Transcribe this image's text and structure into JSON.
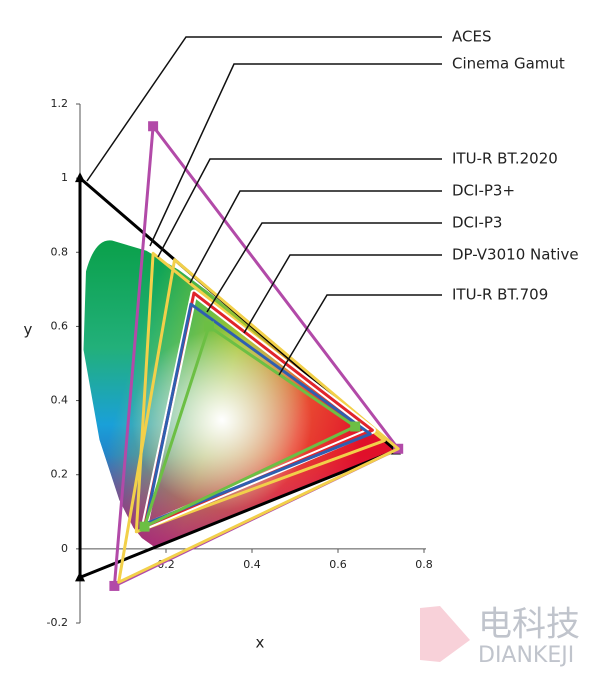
{
  "chart_data": {
    "type": "polygon",
    "xlabel": "x",
    "ylabel": "y",
    "xlim": [
      0,
      0.8
    ],
    "ylim": [
      -0.2,
      1.2
    ],
    "xticks": [
      0.2,
      0.4,
      0.6,
      0.8
    ],
    "yticks": [
      -0.2,
      0,
      0.2,
      0.4,
      0.6,
      0.8,
      1,
      1.2
    ],
    "series": [
      {
        "name": "ACES",
        "color": "#000000",
        "marker": "triangle",
        "x": [
          0.7347,
          0,
          0.0001
        ],
        "y": [
          0.2653,
          1,
          -0.077
        ]
      },
      {
        "name": "Cinema Gamut",
        "color": "#b24aa8",
        "marker": "square",
        "x": [
          0.74,
          0.17,
          0.08
        ],
        "y": [
          0.27,
          1.14,
          -0.1
        ]
      },
      {
        "name": "ITU-R BT.2020",
        "color": "#f2d04a",
        "x": [
          0.708,
          0.17,
          0.131
        ],
        "y": [
          0.292,
          0.797,
          0.046
        ]
      },
      {
        "name": "DCI-P3+",
        "color": "#f2d04a",
        "x": [
          0.74,
          0.22,
          0.09
        ],
        "y": [
          0.27,
          0.78,
          -0.09
        ]
      },
      {
        "name": "DCI-P3",
        "color": "#e0242c",
        "x": [
          0.68,
          0.265,
          0.15
        ],
        "y": [
          0.32,
          0.69,
          0.06
        ]
      },
      {
        "name": "DP-V3010 Native",
        "color": "#2f5fb0",
        "x": [
          0.675,
          0.258,
          0.153
        ],
        "y": [
          0.31,
          0.66,
          0.068
        ]
      },
      {
        "name": "ITU-R BT.709",
        "color": "#6cbf44",
        "marker": "square",
        "x": [
          0.64,
          0.3,
          0.15
        ],
        "y": [
          0.33,
          0.6,
          0.06
        ]
      }
    ],
    "watermark": {
      "cn": "电科技",
      "en": "DIANKEJI"
    }
  }
}
